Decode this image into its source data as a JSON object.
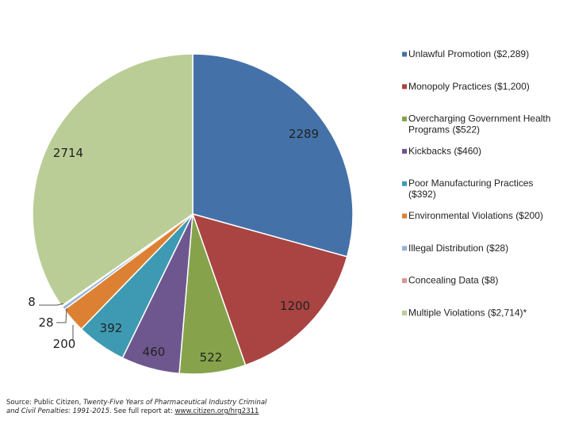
{
  "chart_data": {
    "type": "pie",
    "series": [
      {
        "category": "Unlawful Promotion ($2,289)",
        "value": 2289,
        "label": "2289",
        "color": "#4472A8"
      },
      {
        "category": "Monopoly Practices ($1,200)",
        "value": 1200,
        "label": "1200",
        "color": "#A94442"
      },
      {
        "category": "Overcharging Government Health Programs ($522)",
        "value": 522,
        "label": "522",
        "color": "#86A34B"
      },
      {
        "category": "Kickbacks ($460)",
        "value": 460,
        "label": "460",
        "color": "#6E578F"
      },
      {
        "category": "Poor Manufacturing Practices ($392)",
        "value": 392,
        "label": "392",
        "color": "#3E9AB2"
      },
      {
        "category": "Environmental Violations ($200)",
        "value": 200,
        "label": "200",
        "color": "#DC8133"
      },
      {
        "category": "Illegal Distribution ($28)",
        "value": 28,
        "label": "28",
        "color": "#95B3D7"
      },
      {
        "category": "Concealing Data ($8)",
        "value": 8,
        "label": "8",
        "color": "#D99694"
      },
      {
        "category": "Multiple Violations ($2,714)*",
        "value": 2714,
        "label": "2714",
        "color": "#BACD96"
      }
    ],
    "legend_position": "right"
  },
  "source": {
    "prefix": "Source: Public Citizen, ",
    "title": "Twenty-Five Years of Pharmaceutical Industry Criminal and Civil Penalties: 1991-2015",
    "middle": ". See full report at: ",
    "url": "www.citizen.org/hrg2311"
  }
}
